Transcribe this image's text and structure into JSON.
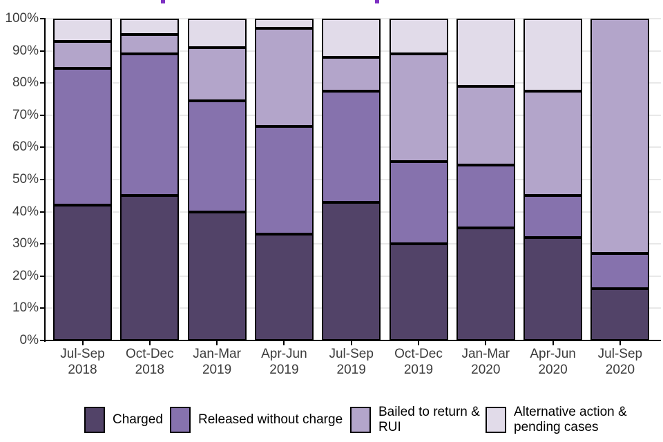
{
  "colors": {
    "charged": "#524368",
    "released_without_charge": "#8672ad",
    "bailed_to_return_rui": "#b3a5ca",
    "alternative_action_pending": "#e1dbe9",
    "bar_border": "#000000",
    "axis": "#000000",
    "gridline": "#e8e8e8",
    "tick_label": "#3c3c3c",
    "cropped_title_marks": "#7d2fc2"
  },
  "chart_data": {
    "type": "bar",
    "stacked": true,
    "unit": "percent",
    "title": "",
    "xlabel": "",
    "ylabel": "",
    "ylim": [
      0,
      100
    ],
    "grid": true,
    "legend_position": "bottom",
    "categories": [
      {
        "quarter": "Jul-Sep",
        "year": "2018"
      },
      {
        "quarter": "Oct-Dec",
        "year": "2018"
      },
      {
        "quarter": "Jan-Mar",
        "year": "2019"
      },
      {
        "quarter": "Apr-Jun",
        "year": "2019"
      },
      {
        "quarter": "Jul-Sep",
        "year": "2019"
      },
      {
        "quarter": "Oct-Dec",
        "year": "2019"
      },
      {
        "quarter": "Jan-Mar",
        "year": "2020"
      },
      {
        "quarter": "Apr-Jun",
        "year": "2020"
      },
      {
        "quarter": "Jul-Sep",
        "year": "2020"
      }
    ],
    "y_ticks": [
      "100%",
      "90%",
      "80%",
      "70%",
      "60%",
      "50%",
      "40%",
      "30%",
      "20%",
      "10%",
      "0%"
    ],
    "series": [
      {
        "name": "Charged",
        "color": "#524368",
        "values": [
          42,
          45,
          40,
          33,
          43,
          30,
          35,
          32,
          16
        ]
      },
      {
        "name": "Released without charge",
        "color": "#8672ad",
        "values": [
          42.5,
          44,
          34.5,
          33.5,
          34.5,
          25.5,
          19.5,
          13,
          11
        ]
      },
      {
        "name": "Bailed to return & RUI",
        "color": "#b3a5ca",
        "values": [
          8.5,
          6,
          16.5,
          30.5,
          10.5,
          33.5,
          24.5,
          32.5,
          73
        ]
      },
      {
        "name": "Alternative action & pending cases",
        "color": "#e1dbe9",
        "values": [
          7,
          5,
          9,
          3,
          12,
          11,
          21,
          22.5,
          0
        ]
      }
    ]
  },
  "legend": {
    "items": [
      {
        "label": "Charged"
      },
      {
        "label": "Released without charge"
      },
      {
        "label": "Bailed to return &\nRUI"
      },
      {
        "label": "Alternative action &\npending cases"
      }
    ]
  }
}
